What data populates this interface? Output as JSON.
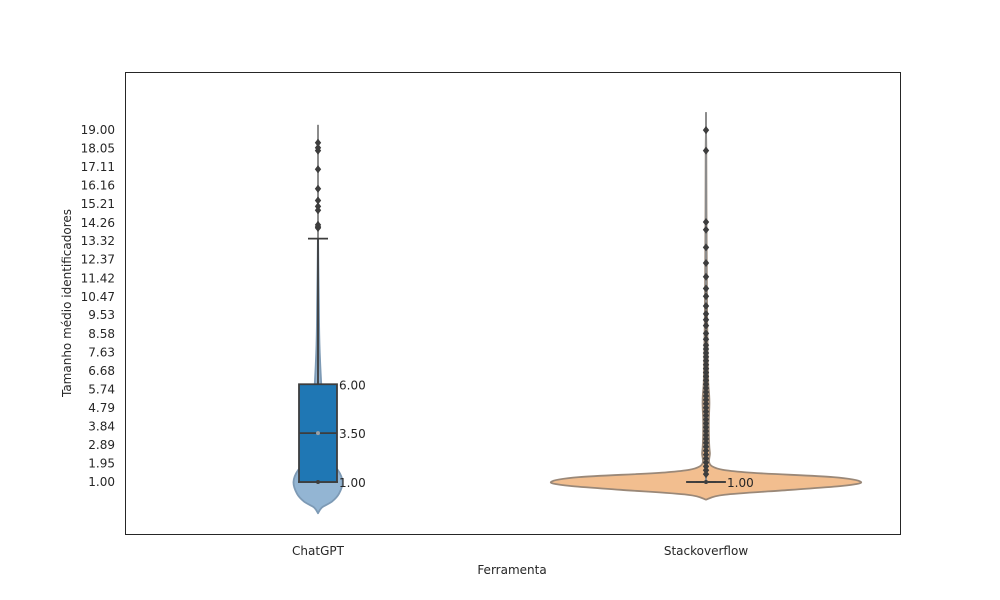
{
  "chart_data": {
    "type": "violin",
    "xlabel": "Ferramenta",
    "ylabel": "Tamanho médio identificadores",
    "categories": [
      "ChatGPT",
      "Stackoverflow"
    ],
    "y_ticks": [
      "1.00",
      "1.95",
      "2.89",
      "3.84",
      "4.79",
      "5.74",
      "6.68",
      "7.63",
      "8.58",
      "9.53",
      "10.47",
      "11.42",
      "12.37",
      "13.32",
      "14.26",
      "15.21",
      "16.16",
      "17.11",
      "18.05",
      "19.00"
    ],
    "ylim": [
      -1.6,
      22.0
    ],
    "grid": false,
    "series": [
      {
        "category": "ChatGPT",
        "color": "#1f77b4",
        "violin_fill": "#93b5d3",
        "violin_edge": "#7d9ab5",
        "box": {
          "q1": 1.0,
          "median": 3.5,
          "q3": 6.0,
          "whisker_low": 1.0,
          "whisker_high": 13.45
        },
        "density_profile": [
          [
            -0.6,
            0.0
          ],
          [
            -0.3,
            0.08
          ],
          [
            0.0,
            0.28
          ],
          [
            0.4,
            0.42
          ],
          [
            1.0,
            0.49
          ],
          [
            1.6,
            0.4
          ],
          [
            2.0,
            0.22
          ],
          [
            2.5,
            0.13
          ],
          [
            3.0,
            0.11
          ],
          [
            4.0,
            0.09
          ],
          [
            5.0,
            0.085
          ],
          [
            6.0,
            0.065
          ],
          [
            7.0,
            0.045
          ],
          [
            8.0,
            0.03
          ],
          [
            9.0,
            0.022
          ],
          [
            10.0,
            0.018
          ],
          [
            11.0,
            0.013
          ],
          [
            12.0,
            0.008
          ],
          [
            13.0,
            0.004
          ],
          [
            14.0,
            0.0
          ]
        ],
        "outliers": [
          14.0,
          14.05,
          14.15,
          14.9,
          15.1,
          15.4,
          16.0,
          17.0,
          17.95,
          18.1,
          18.35
        ],
        "annotations": [
          {
            "value": 6.0,
            "text": "6.00"
          },
          {
            "value": 3.5,
            "text": "3.50"
          },
          {
            "value": 1.0,
            "text": "1.00"
          }
        ]
      },
      {
        "category": "Stackoverflow",
        "color": "#ff7f0e",
        "violin_fill": "#f2be8f",
        "violin_edge": "#9a8878",
        "box": {
          "q1": 1.0,
          "median": 1.0,
          "q3": 1.0,
          "whisker_low": 1.0,
          "whisker_high": 1.0
        },
        "density_profile": [
          [
            0.1,
            0.0
          ],
          [
            0.35,
            0.12
          ],
          [
            0.6,
            0.55
          ],
          [
            0.8,
            0.88
          ],
          [
            1.0,
            1.0
          ],
          [
            1.25,
            0.82
          ],
          [
            1.5,
            0.25
          ],
          [
            1.8,
            0.04
          ],
          [
            2.5,
            0.025
          ],
          [
            3.0,
            0.02
          ],
          [
            4.0,
            0.018
          ],
          [
            5.0,
            0.022
          ],
          [
            5.5,
            0.02
          ],
          [
            6.0,
            0.015
          ],
          [
            7.0,
            0.012
          ],
          [
            9.0,
            0.008
          ],
          [
            12.0,
            0.005
          ],
          [
            15.0,
            0.003
          ],
          [
            18.0,
            0.002
          ],
          [
            19.0,
            0.0
          ]
        ],
        "outliers": [
          1.4,
          1.6,
          1.8,
          2.0,
          2.2,
          2.4,
          2.6,
          2.8,
          3.0,
          3.2,
          3.4,
          3.6,
          3.8,
          4.0,
          4.2,
          4.4,
          4.6,
          4.8,
          5.0,
          5.2,
          5.4,
          5.6,
          5.8,
          6.0,
          6.2,
          6.4,
          6.6,
          6.8,
          7.0,
          7.2,
          7.4,
          7.6,
          7.8,
          8.0,
          8.3,
          8.6,
          9.0,
          9.3,
          9.6,
          10.0,
          10.5,
          10.9,
          11.5,
          12.2,
          13.0,
          13.9,
          14.3,
          17.95,
          19.0
        ],
        "annotations": [
          {
            "value": 1.0,
            "text": "1.00"
          }
        ]
      }
    ]
  }
}
